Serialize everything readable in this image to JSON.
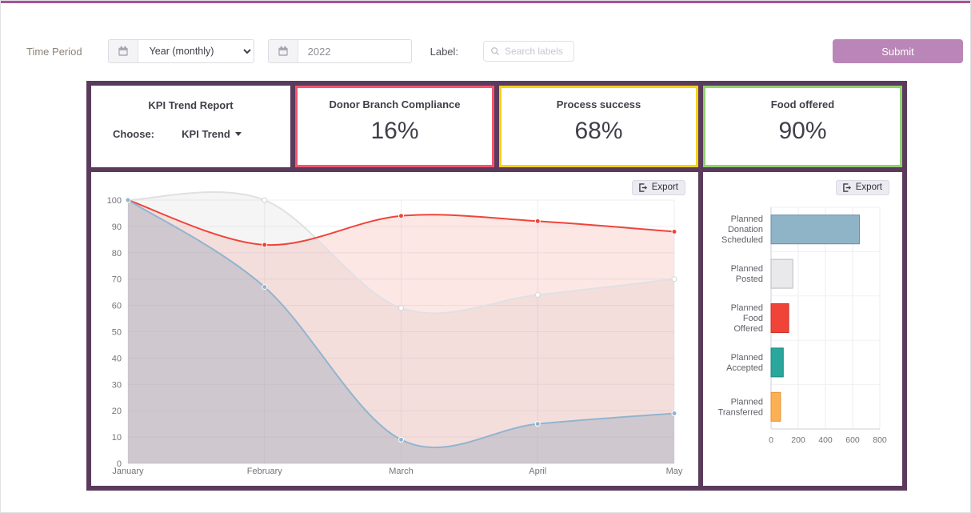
{
  "toolbar": {
    "time_period_label": "Time Period",
    "period_select": {
      "value": "Year (monthly)",
      "icon": "calendar-icon"
    },
    "year_input": {
      "value": "2022",
      "icon": "calendar-icon"
    },
    "label_text": "Label:",
    "search": {
      "placeholder": "Search labels",
      "icon": "search-icon"
    },
    "submit_label": "Submit"
  },
  "cards": {
    "kpi": {
      "title": "KPI Trend Report",
      "choose_label": "Choose:",
      "dropdown_label": "KPI Trend",
      "dropdown_icon": "caret-down-icon"
    },
    "metrics": [
      {
        "title": "Donor Branch Compliance",
        "value": "16%",
        "accent": "#f4566e"
      },
      {
        "title": "Process success",
        "value": "68%",
        "accent": "#f2d21a"
      },
      {
        "title": "Food offered",
        "value": "90%",
        "accent": "#90d271"
      }
    ]
  },
  "panels": {
    "line_panel": {
      "export_label": "Export",
      "export_icon": "export-icon"
    },
    "bar_panel": {
      "export_label": "Export",
      "export_icon": "export-icon"
    }
  },
  "colors": {
    "frame": "#5b3b5c",
    "submit": "#ba86b8",
    "top_accent": "#a85398"
  },
  "chart_data": [
    {
      "type": "area",
      "title": "",
      "x": [
        "January",
        "February",
        "March",
        "April",
        "May"
      ],
      "ylim": [
        0,
        100
      ],
      "yticks": [
        0,
        10,
        20,
        30,
        40,
        50,
        60,
        70,
        80,
        90,
        100
      ],
      "grid": true,
      "legend_position": "none",
      "series": [
        {
          "name": "gray-series",
          "color": "#e0e0e3",
          "fill": "rgba(185,185,185,0.15)",
          "point_fill": "#ffffff",
          "point_stroke": "#d5d5d5",
          "values": [
            100,
            100,
            59,
            64,
            70
          ]
        },
        {
          "name": "red-series",
          "color": "#f04438",
          "fill": "rgba(240,68,56,0.13)",
          "point_fill": "#f04438",
          "point_stroke": "#ffffff",
          "values": [
            100,
            83,
            94,
            92,
            88
          ]
        },
        {
          "name": "blue-series",
          "color": "#92b4cf",
          "fill": "rgba(122,152,180,0.30)",
          "point_fill": "#92b4cf",
          "point_stroke": "#ffffff",
          "values": [
            100,
            67,
            9,
            15,
            19
          ]
        }
      ]
    },
    {
      "type": "bar",
      "orientation": "horizontal",
      "title": "",
      "categories": [
        "Planned Donation Scheduled",
        "Planned Posted",
        "Planned Food Offered",
        "Planned Accepted",
        "Planned Transferred"
      ],
      "values": [
        650,
        160,
        130,
        90,
        70
      ],
      "colors": [
        "#8fb3c7",
        "#e9e9ec",
        "#f04438",
        "#2aa79c",
        "#fbb153"
      ],
      "strokes": [
        "#6590a9",
        "#b9b9c2",
        "#c93128",
        "#1f877e",
        "#e0953a"
      ],
      "xlim": [
        0,
        800
      ],
      "xticks": [
        0,
        200,
        400,
        600,
        800
      ],
      "grid": true
    }
  ]
}
